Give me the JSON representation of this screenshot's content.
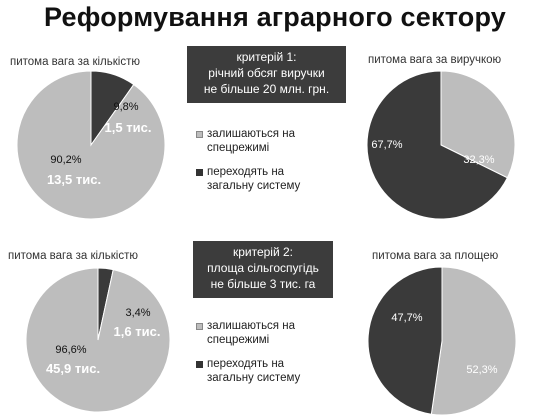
{
  "title": "Реформування аграрного сектору",
  "criteria": [
    {
      "line1": "критерій 1:",
      "line2": "річний обсяг виручки",
      "line3": "не більше 20 млн. грн."
    },
    {
      "line1": "критерій 2:",
      "line2": "площа сільгоспугідь",
      "line3": "не більше 3 тис. га"
    }
  ],
  "legend": {
    "stay": [
      "залишаються на",
      "спецрежимі"
    ],
    "move": [
      "переходять на",
      "загальну систему"
    ]
  },
  "colors": {
    "light": "#bdbdbd",
    "dark": "#3a3a3a"
  },
  "chart_data": [
    {
      "type": "pie",
      "title": "питома вага за кількістю",
      "slices": [
        {
          "series": "stay",
          "value": 90.2,
          "label": "90,2%",
          "sublabel": "13,5 тис."
        },
        {
          "series": "move",
          "value": 9.8,
          "label": "9,8%",
          "sublabel": "1,5 тис."
        }
      ]
    },
    {
      "type": "pie",
      "title": "питома вага за виручкою",
      "slices": [
        {
          "series": "stay",
          "value": 32.3,
          "label": "32,3%"
        },
        {
          "series": "move",
          "value": 67.7,
          "label": "67,7%"
        }
      ]
    },
    {
      "type": "pie",
      "title": "питома вага за кількістю",
      "slices": [
        {
          "series": "stay",
          "value": 96.6,
          "label": "96,6%",
          "sublabel": "45,9 тис."
        },
        {
          "series": "move",
          "value": 3.4,
          "label": "3,4%",
          "sublabel": "1,6 тис."
        }
      ]
    },
    {
      "type": "pie",
      "title": "питома вага за площею",
      "slices": [
        {
          "series": "stay",
          "value": 52.3,
          "label": "52,3%"
        },
        {
          "series": "move",
          "value": 47.7,
          "label": "47,7%"
        }
      ]
    }
  ]
}
